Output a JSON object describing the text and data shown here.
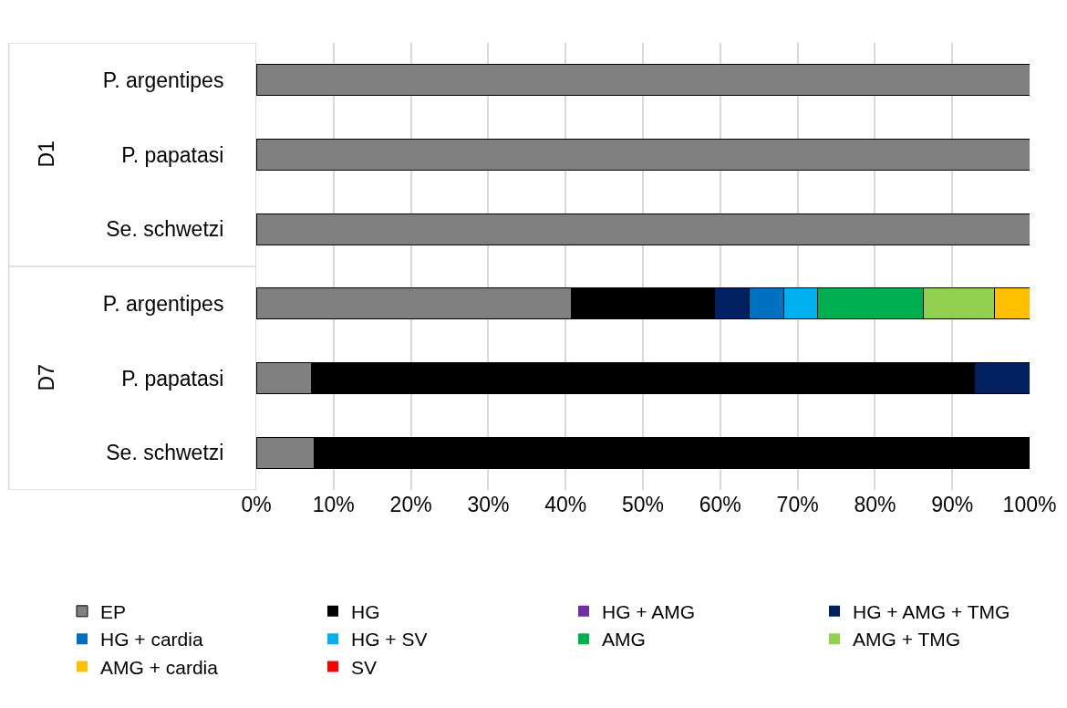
{
  "chart_data": {
    "type": "bar",
    "orientation": "horizontal",
    "stacked": true,
    "categories": [
      "P. argentipes",
      "P. papatasi",
      "Se. schwetzi",
      "P. argentipes",
      "P. papatasi",
      "Se. schwetzi"
    ],
    "annotations": [
      "D1",
      "D7"
    ],
    "series": [
      {
        "name": "EP",
        "color": "#808080",
        "values": [
          100,
          100,
          100,
          40.8,
          7.1,
          7.5
        ]
      },
      {
        "name": "HG",
        "color": "#000000",
        "values": [
          0,
          0,
          0,
          18.4,
          85.8,
          92.5
        ]
      },
      {
        "name": "HG + AMG",
        "color": "#7030a0",
        "values": [
          0,
          0,
          0,
          0,
          0,
          0
        ]
      },
      {
        "name": "HG + AMG + TMG",
        "color": "#002060",
        "values": [
          0,
          0,
          0,
          4.5,
          7.1,
          0
        ]
      },
      {
        "name": "HG + cardia",
        "color": "#0070c0",
        "values": [
          0,
          0,
          0,
          4.5,
          0,
          0
        ]
      },
      {
        "name": "HG + SV",
        "color": "#00b0f0",
        "values": [
          0,
          0,
          0,
          4.4,
          0,
          0
        ]
      },
      {
        "name": "AMG",
        "color": "#00b050",
        "values": [
          0,
          0,
          0,
          13.7,
          0,
          0
        ]
      },
      {
        "name": "AMG + TMG",
        "color": "#92d050",
        "values": [
          0,
          0,
          0,
          9.2,
          0,
          0
        ]
      },
      {
        "name": "AMG + cardia",
        "color": "#ffc000",
        "values": [
          0,
          0,
          0,
          4.5,
          0,
          0
        ]
      },
      {
        "name": "SV",
        "color": "#ff0000",
        "values": [
          0,
          0,
          0,
          0,
          0,
          0
        ]
      }
    ],
    "xlim": [
      0,
      100
    ],
    "xticks": [
      {
        "value": 0,
        "label": "0%"
      },
      {
        "value": 10,
        "label": "10%"
      },
      {
        "value": 20,
        "label": "20%"
      },
      {
        "value": 30,
        "label": "30%"
      },
      {
        "value": 40,
        "label": "40%"
      },
      {
        "value": 50,
        "label": "50%"
      },
      {
        "value": 60,
        "label": "60%"
      },
      {
        "value": 70,
        "label": "70%"
      },
      {
        "value": 80,
        "label": "80%"
      },
      {
        "value": 90,
        "label": "90%"
      },
      {
        "value": 100,
        "label": "100%"
      }
    ],
    "grid": "x",
    "legend": "bottom"
  }
}
